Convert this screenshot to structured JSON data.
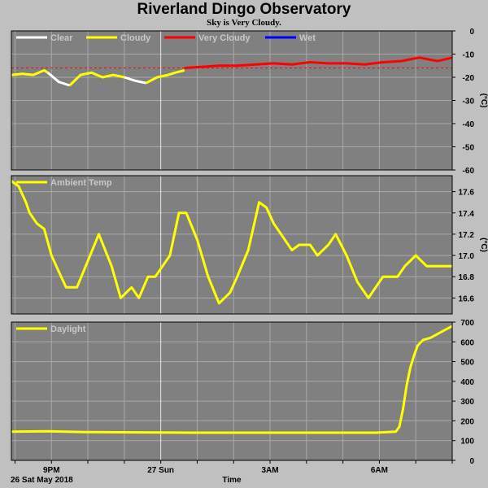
{
  "header": {
    "title": "Riverland Dingo Observatory",
    "subtitle": "Sky is Very Cloudy."
  },
  "footer": {
    "date_label": "26 Sat May 2018",
    "time_label": "Time"
  },
  "colors": {
    "background": "#c0c0c0",
    "panel": "#808080",
    "grid": "#a8a8a8",
    "clear": "#ffffff",
    "cloudy": "#ffff00",
    "very_cloudy": "#ff0000",
    "wet": "#0000ff",
    "threshold": "#ff0000",
    "legend_text": "#c8c8c8"
  },
  "chart_data": [
    {
      "type": "line",
      "id": "sky",
      "ylim": [
        -60,
        0
      ],
      "yticks": [
        0,
        -10,
        -20,
        -30,
        -40,
        -50,
        -60
      ],
      "ytick_labels": [
        "0",
        "-10",
        "-20",
        "-30",
        "-40",
        "-50",
        "-60"
      ],
      "unit_label": "(°C)",
      "threshold": -16,
      "legend": [
        {
          "label": "Clear",
          "color": "#ffffff"
        },
        {
          "label": "Cloudy",
          "color": "#ffff00"
        },
        {
          "label": "Very Cloudy",
          "color": "#ff0000"
        },
        {
          "label": "Wet",
          "color": "#0000ff"
        }
      ],
      "series": [
        {
          "name": "Cloudy",
          "color": "#ffff00",
          "x": [
            0,
            0.3,
            0.6,
            0.9,
            1.0
          ],
          "y": [
            -19,
            -18.5,
            -19,
            -17,
            -18
          ]
        },
        {
          "name": "Clear",
          "color": "#ffffff",
          "x": [
            1.0,
            1.3,
            1.6
          ],
          "y": [
            -18,
            -22,
            -23.5
          ]
        },
        {
          "name": "Cloudy",
          "color": "#ffff00",
          "x": [
            1.6,
            1.9,
            2.2,
            2.5,
            2.8,
            3.1
          ],
          "y": [
            -23.5,
            -19,
            -18,
            -20,
            -19,
            -20
          ]
        },
        {
          "name": "Clear",
          "color": "#ffffff",
          "x": [
            3.1,
            3.4,
            3.7
          ],
          "y": [
            -20,
            -21.5,
            -22.5
          ]
        },
        {
          "name": "Cloudy",
          "color": "#ffff00",
          "x": [
            3.7,
            4.0,
            4.3,
            4.5,
            4.75
          ],
          "y": [
            -22.5,
            -20,
            -19,
            -18,
            -17
          ]
        },
        {
          "name": "Very Cloudy",
          "color": "#ff0000",
          "x": [
            4.75,
            5.2,
            5.7,
            6.2,
            6.7,
            7.2,
            7.7,
            8.2,
            8.7,
            9.2,
            9.7,
            10.2,
            10.7,
            11.2,
            11.7,
            12.1
          ],
          "y": [
            -16,
            -15.5,
            -15,
            -15,
            -14.5,
            -14,
            -14.5,
            -13.5,
            -14,
            -14,
            -14.5,
            -13.5,
            -13,
            -11.5,
            -13,
            -11.5
          ]
        }
      ]
    },
    {
      "type": "line",
      "id": "ambient",
      "ylim": [
        16.45,
        17.75
      ],
      "yticks": [
        16.6,
        16.8,
        17.0,
        17.2,
        17.4,
        17.6
      ],
      "ytick_labels": [
        "16.6",
        "16.8",
        "17.0",
        "17.2",
        "17.4",
        "17.6"
      ],
      "unit_label": "(°C)",
      "legend": [
        {
          "label": "Ambient Temp",
          "color": "#ffff00"
        }
      ],
      "series": [
        {
          "name": "Ambient Temp",
          "color": "#ffff00",
          "x": [
            0,
            0.2,
            0.4,
            0.5,
            0.7,
            0.9,
            1.1,
            1.3,
            1.5,
            1.8,
            2.1,
            2.4,
            2.75,
            3.0,
            3.3,
            3.5,
            3.75,
            3.95,
            4.15,
            4.35,
            4.6,
            4.8,
            5.1,
            5.4,
            5.7,
            6.0,
            6.2,
            6.5,
            6.8,
            7.0,
            7.2,
            7.4,
            7.7,
            7.9,
            8.2,
            8.4,
            8.7,
            8.9,
            9.2,
            9.5,
            9.8,
            10.0,
            10.2,
            10.4,
            10.6,
            10.8,
            11.1,
            11.4,
            11.6,
            11.8,
            12.1
          ],
          "y": [
            17.7,
            17.65,
            17.5,
            17.4,
            17.3,
            17.25,
            17.0,
            16.85,
            16.7,
            16.7,
            16.95,
            17.2,
            16.9,
            16.6,
            16.7,
            16.6,
            16.8,
            16.8,
            16.9,
            17.0,
            17.4,
            17.4,
            17.15,
            16.8,
            16.55,
            16.65,
            16.8,
            17.05,
            17.5,
            17.45,
            17.3,
            17.2,
            17.05,
            17.1,
            17.1,
            17.0,
            17.1,
            17.2,
            17.0,
            16.75,
            16.6,
            16.7,
            16.8,
            16.8,
            16.8,
            16.9,
            17.0,
            16.9,
            16.9,
            16.9,
            16.9
          ]
        }
      ]
    },
    {
      "type": "line",
      "id": "daylight",
      "ylim": [
        0,
        700
      ],
      "yticks": [
        0,
        100,
        200,
        300,
        400,
        500,
        600,
        700
      ],
      "ytick_labels": [
        "0",
        "100",
        "200",
        "300",
        "400",
        "500",
        "600",
        "700"
      ],
      "unit_label": "",
      "legend": [
        {
          "label": "Daylight",
          "color": "#ffff00"
        }
      ],
      "series": [
        {
          "name": "Daylight",
          "color": "#ffff00",
          "x": [
            0,
            1,
            2,
            3,
            4,
            5,
            6,
            7,
            8,
            9,
            10,
            10.55,
            10.65,
            10.75,
            10.85,
            10.95,
            11.05,
            11.15,
            11.3,
            11.5,
            11.7,
            11.9,
            12.1
          ],
          "y": [
            145,
            147,
            143,
            142,
            141,
            140,
            140,
            140,
            140,
            140,
            140,
            145,
            170,
            260,
            380,
            470,
            530,
            580,
            610,
            620,
            640,
            660,
            680
          ]
        }
      ]
    }
  ],
  "x_axis": {
    "range": [
      0,
      12.1
    ],
    "ticks": [
      {
        "x": 1.1,
        "label": "9PM",
        "major": false
      },
      {
        "x": 4.1,
        "label": "27 Sun",
        "major": true
      },
      {
        "x": 7.1,
        "label": "3AM",
        "major": false
      },
      {
        "x": 10.1,
        "label": "6AM",
        "major": false
      }
    ],
    "minor_step": 1
  }
}
